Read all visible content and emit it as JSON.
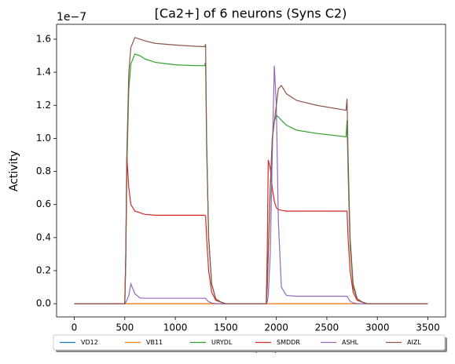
{
  "chart_data": {
    "type": "line",
    "title": "[Ca2+] of 6 neurons (Syns C2)",
    "x_label": "Time (ms)",
    "y_label": "Activity",
    "y_offset_label": "1e−7",
    "x": [
      0,
      500,
      510,
      520,
      540,
      560,
      600,
      650,
      700,
      800,
      1000,
      1200,
      1290,
      1300,
      1310,
      1330,
      1360,
      1400,
      1450,
      1500,
      1900,
      1910,
      1920,
      1940,
      1960,
      1980,
      2000,
      2020,
      2050,
      2100,
      2200,
      2400,
      2690,
      2700,
      2710,
      2730,
      2760,
      2800,
      2850,
      2900,
      3500
    ],
    "series": [
      {
        "name": "VD12",
        "color": "#1f77b4",
        "values": [
          0,
          0,
          0,
          0,
          0,
          0,
          0,
          0,
          0,
          0,
          0,
          0,
          0,
          0,
          0,
          0,
          0,
          0,
          0,
          0,
          0,
          0,
          0,
          0,
          0,
          0,
          0,
          0,
          0,
          0,
          0,
          0,
          0,
          0,
          0,
          0,
          0,
          0,
          0,
          0,
          0
        ]
      },
      {
        "name": "VB11",
        "color": "#ff7f0e",
        "values": [
          0,
          0,
          0,
          0,
          0,
          0,
          0,
          0,
          0,
          0,
          0,
          0,
          0,
          0,
          0,
          0,
          0,
          0,
          0,
          0,
          0,
          0,
          0,
          0,
          0,
          0,
          0,
          0,
          0,
          0,
          0,
          0,
          0,
          0,
          0,
          0,
          0,
          0,
          0,
          0,
          0
        ]
      },
      {
        "name": "URYDL",
        "color": "#2ca02c",
        "values": [
          0,
          0,
          0.25,
          0.8,
          1.3,
          1.45,
          1.51,
          1.5,
          1.48,
          1.46,
          1.445,
          1.44,
          1.44,
          1.46,
          0.95,
          0.4,
          0.12,
          0.03,
          0.01,
          0,
          0,
          0.1,
          0.3,
          0.7,
          1.0,
          1.1,
          1.14,
          1.13,
          1.11,
          1.08,
          1.05,
          1.03,
          1.01,
          1.11,
          0.8,
          0.35,
          0.1,
          0.03,
          0.01,
          0,
          0
        ]
      },
      {
        "name": "SMDDR",
        "color": "#d62728",
        "values": [
          0,
          0,
          0.3,
          0.89,
          0.7,
          0.6,
          0.56,
          0.55,
          0.54,
          0.535,
          0.535,
          0.535,
          0.535,
          0.53,
          0.4,
          0.2,
          0.07,
          0.02,
          0.01,
          0,
          0,
          0.3,
          0.87,
          0.82,
          0.7,
          0.62,
          0.58,
          0.57,
          0.565,
          0.56,
          0.56,
          0.56,
          0.56,
          0.56,
          0.4,
          0.2,
          0.07,
          0.02,
          0.01,
          0,
          0
        ]
      },
      {
        "name": "ASHL",
        "color": "#9467bd",
        "values": [
          0,
          0,
          0.01,
          0.02,
          0.05,
          0.12,
          0.06,
          0.035,
          0.033,
          0.033,
          0.033,
          0.033,
          0.033,
          0.033,
          0.025,
          0.012,
          0.004,
          0.001,
          0,
          0,
          0,
          0.01,
          0.05,
          0.3,
          0.9,
          1.44,
          1.2,
          0.5,
          0.1,
          0.05,
          0.045,
          0.045,
          0.045,
          0.045,
          0.035,
          0.015,
          0.005,
          0.001,
          0,
          0,
          0
        ]
      },
      {
        "name": "AIZL",
        "color": "#8c564b",
        "values": [
          0,
          0,
          0.3,
          0.9,
          1.4,
          1.55,
          1.61,
          1.6,
          1.59,
          1.575,
          1.565,
          1.557,
          1.555,
          1.57,
          1.0,
          0.4,
          0.12,
          0.03,
          0.01,
          0,
          0,
          0.1,
          0.3,
          0.7,
          1.0,
          1.1,
          1.2,
          1.3,
          1.32,
          1.27,
          1.23,
          1.2,
          1.17,
          1.24,
          0.9,
          0.4,
          0.12,
          0.03,
          0.01,
          0,
          0
        ]
      }
    ],
    "xlim": [
      -175,
      3675
    ],
    "ylim": [
      -0.08,
      1.69
    ],
    "xticks": [
      0,
      500,
      1000,
      1500,
      2000,
      2500,
      3000,
      3500
    ],
    "yticks": [
      {
        "value": 0,
        "label": "0.0"
      },
      {
        "value": 0.2,
        "label": "0.2"
      },
      {
        "value": 0.4,
        "label": "0.4"
      },
      {
        "value": 0.6,
        "label": "0.6"
      },
      {
        "value": 0.8,
        "label": "0.8"
      },
      {
        "value": 1.0,
        "label": "1.0"
      },
      {
        "value": 1.2,
        "label": "1.2"
      },
      {
        "value": 1.4,
        "label": "1.4"
      },
      {
        "value": 1.6,
        "label": "1.6"
      }
    ],
    "grid": false,
    "legend": "below"
  }
}
